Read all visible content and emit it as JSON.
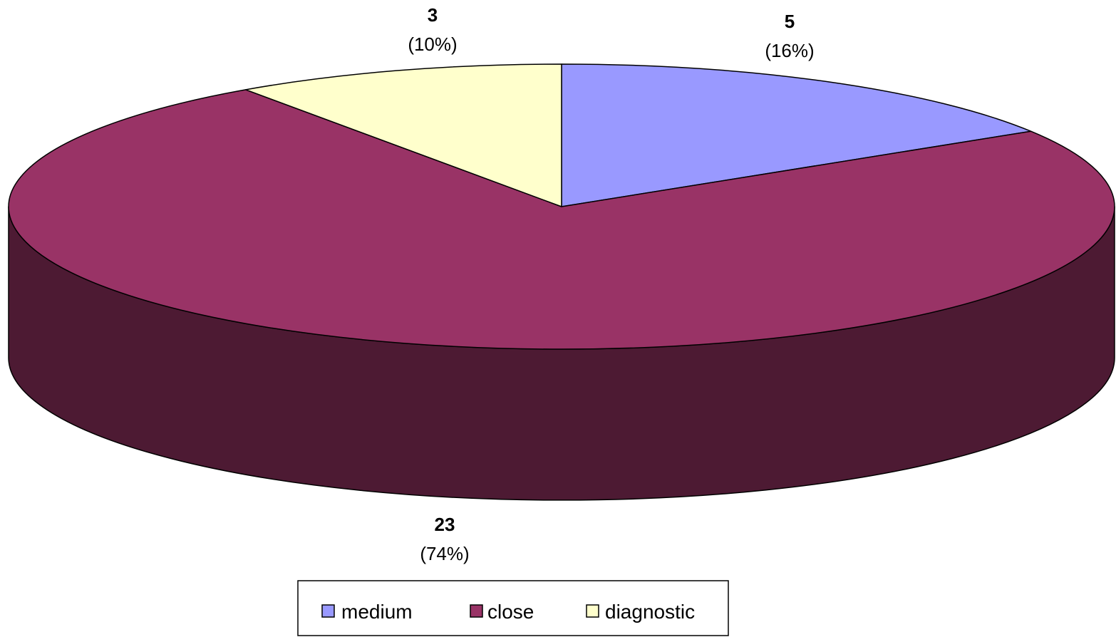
{
  "chart_data": {
    "type": "pie",
    "style": "3d",
    "categories": [
      "medium",
      "close",
      "diagnostic"
    ],
    "values": [
      5,
      23,
      3
    ],
    "percent_labels": [
      "(16%)",
      "(74%)",
      "(10%)"
    ],
    "count_labels": [
      "5",
      "23",
      "3"
    ],
    "colors": [
      "#9999ff",
      "#993366",
      "#ffffcc"
    ],
    "side_colors": [
      "#5c5c99",
      "#4d1a33",
      "#99997a"
    ],
    "legend": {
      "position": "bottom",
      "entries": [
        "medium",
        "close",
        "diagnostic"
      ]
    }
  }
}
